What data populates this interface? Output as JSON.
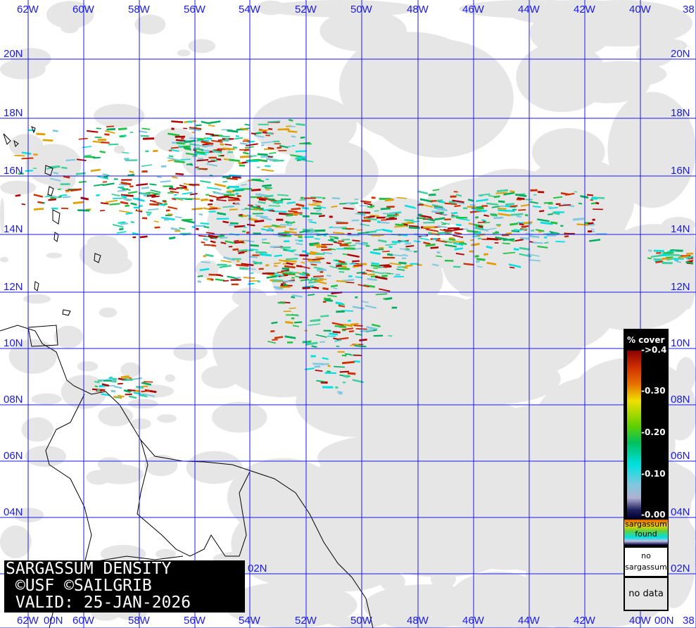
{
  "title": {
    "line1": "SARGASSUM DENSITY",
    "line2": " ©USF ©SAILGRIB",
    "line3": " VALID: 25-JAN-2026"
  },
  "grid": {
    "longitudes": [
      "62W",
      "60W",
      "58W",
      "56W",
      "54W",
      "52W",
      "50W",
      "48W",
      "46W",
      "44W",
      "42W",
      "40W",
      "38"
    ],
    "latitudes": [
      "20N",
      "18N",
      "16N",
      "14N",
      "12N",
      "10N",
      "08N",
      "06N",
      "04N",
      "02N",
      "00N"
    ],
    "line_color": "#1a1ae6"
  },
  "legend": {
    "title": "% cover",
    "ticks": [
      "->0.4",
      "-0.30",
      "-0.20",
      "-0.10",
      "-0.00"
    ],
    "found": [
      "sargassum",
      "found"
    ],
    "no_sargassum": [
      "no",
      "sargassum"
    ],
    "no_data": "no data"
  },
  "colors": {
    "clouds": "#e6e6e6",
    "land_outline": "#000000",
    "background": "#ffffff"
  }
}
